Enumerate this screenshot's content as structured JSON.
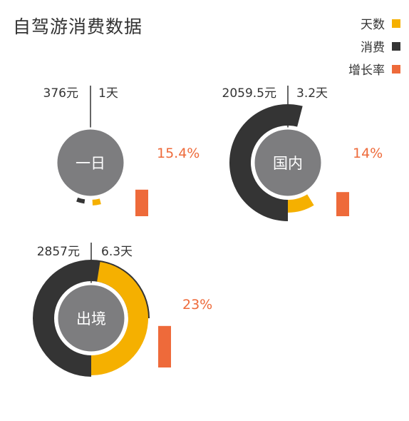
{
  "title": "自驾游消费数据",
  "colors": {
    "days": "#F5B000",
    "spend": "#343434",
    "growth": "#EE6A3A",
    "center": "#7D7D7F",
    "text": "#333333"
  },
  "chart_data": {
    "type": "radial-bar",
    "title": "自驾游消费数据",
    "legend": [
      {
        "key": "days",
        "label": "天数"
      },
      {
        "key": "spend",
        "label": "消费"
      },
      {
        "key": "growth",
        "label": "增长率"
      }
    ],
    "legend_position": "top-right",
    "groups": [
      {
        "name": "一日",
        "spend": 376,
        "spend_label": "376元",
        "days": 1,
        "days_label": "1天",
        "growth": 15.4,
        "growth_label": "15.4%"
      },
      {
        "name": "国内",
        "spend": 2059.5,
        "spend_label": "2059.5元",
        "days": 3.2,
        "days_label": "3.2天",
        "growth": 14,
        "growth_label": "14%"
      },
      {
        "name": "出境",
        "spend": 2857,
        "spend_label": "2857元",
        "days": 6.3,
        "days_label": "6.3天",
        "growth": 23,
        "growth_label": "23%"
      }
    ]
  }
}
